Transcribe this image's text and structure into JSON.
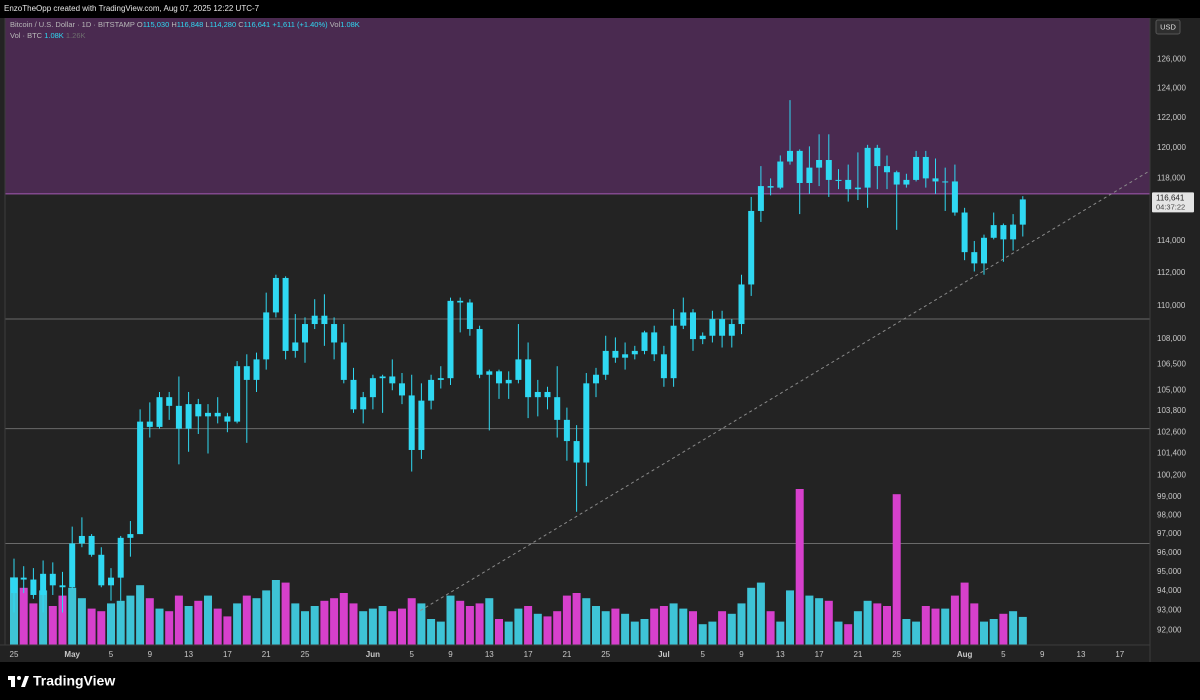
{
  "header": {
    "text": "EnzoTheOpp created with TradingView.com, Aug 07, 2025 12:22 UTC-7"
  },
  "footer": {
    "brand": "TradingView"
  },
  "legend": {
    "symbol": "Bitcoin / U.S. Dollar · 1D · BITSTAMP",
    "ohlc": [
      {
        "key": "O",
        "value": "115,030"
      },
      {
        "key": "H",
        "value": "116,848"
      },
      {
        "key": "L",
        "value": "114,280"
      },
      {
        "key": "C",
        "value": "116,641"
      }
    ],
    "change": "+1,611 (+1.40%)",
    "vol_key": "Vol",
    "vol_value": "1.08K",
    "vol_series": "Vol · BTC",
    "vol_now": "1.08K",
    "vol_ma": "1.26K"
  },
  "chart_data": {
    "type": "candlestick",
    "currency": "USD",
    "categories": [
      "25",
      null,
      null,
      null,
      null,
      null,
      "May",
      null,
      null,
      null,
      "5",
      null,
      null,
      null,
      "9",
      null,
      null,
      null,
      "13",
      null,
      null,
      null,
      "17",
      null,
      null,
      null,
      "21",
      null,
      null,
      null,
      "25",
      null,
      null,
      null,
      null,
      null,
      null,
      "Jun",
      null,
      null,
      null,
      "5",
      null,
      null,
      null,
      "9",
      null,
      null,
      null,
      "13",
      null,
      null,
      null,
      "17",
      null,
      null,
      null,
      "21",
      null,
      null,
      null,
      "25",
      null,
      null,
      null,
      null,
      null,
      "Jul",
      null,
      null,
      null,
      "5",
      null,
      null,
      null,
      "9",
      null,
      null,
      null,
      "13",
      null,
      null,
      null,
      "17",
      null,
      null,
      null,
      "21",
      null,
      null,
      null,
      "25",
      null,
      null,
      null,
      null,
      null,
      null,
      "Aug",
      null,
      null,
      null,
      "5",
      null,
      null,
      null,
      "9",
      null,
      null,
      null,
      "13",
      null,
      null,
      null,
      "17",
      null,
      null
    ],
    "open": [
      93900,
      94700,
      94600,
      93800,
      94900,
      94300,
      94200,
      96500,
      96900,
      95900,
      94300,
      94700,
      96800,
      97000,
      103200,
      102900,
      104600,
      104100,
      102800,
      104200,
      103500,
      103700,
      103500,
      103200,
      106400,
      105600,
      106800,
      109600,
      111700,
      107300,
      107800,
      108900,
      109400,
      108900,
      107800,
      105600,
      103900,
      104600,
      105700,
      105800,
      105400,
      104700,
      101600,
      104400,
      105600,
      105700,
      110300,
      110200,
      108600,
      105900,
      106100,
      105400,
      105600,
      106800,
      104600,
      104900,
      104600,
      103300,
      102100,
      100900,
      105400,
      105900,
      107300,
      106900,
      107100,
      107300,
      108400,
      107100,
      105700,
      108800,
      109600,
      108000,
      108200,
      109200,
      108200,
      108900,
      111300,
      115900,
      117500,
      117400,
      119100,
      119800,
      117700,
      118700,
      119200,
      117900,
      117900,
      117300,
      117400,
      120000,
      118800,
      118400,
      117600,
      117900,
      119400,
      118000,
      117800,
      117800,
      115800,
      113300,
      112600,
      114200,
      115000,
      114100,
      115030,
      null,
      null,
      null,
      null,
      null,
      null,
      null,
      null,
      null,
      null,
      null,
      null
    ],
    "high": [
      95700,
      95300,
      95200,
      95600,
      95500,
      95000,
      97400,
      97900,
      97000,
      96300,
      95200,
      96900,
      97700,
      103900,
      104300,
      104900,
      104900,
      105800,
      104900,
      104500,
      104200,
      104600,
      103700,
      106700,
      107100,
      107200,
      110800,
      111900,
      111800,
      109500,
      109300,
      110400,
      110700,
      109300,
      108900,
      106300,
      104900,
      105900,
      105900,
      106800,
      106000,
      105900,
      105400,
      105900,
      106400,
      110500,
      110500,
      110400,
      108800,
      106200,
      106200,
      106100,
      108900,
      107800,
      105600,
      105200,
      106400,
      104000,
      103000,
      106000,
      106300,
      108200,
      108100,
      107800,
      107600,
      108500,
      108800,
      107600,
      109800,
      110500,
      109800,
      108400,
      109700,
      109700,
      109200,
      111900,
      116800,
      118800,
      118000,
      119500,
      123200,
      119900,
      120100,
      120900,
      120900,
      118600,
      118900,
      119700,
      120200,
      120200,
      119500,
      118500,
      118300,
      119800,
      119800,
      119300,
      118700,
      118900,
      116100,
      114000,
      114400,
      115800,
      115100,
      115700,
      116848,
      null,
      null,
      null,
      null,
      null,
      null,
      null,
      null,
      null,
      null,
      null,
      null
    ],
    "low": [
      92900,
      93900,
      93600,
      92900,
      93800,
      92900,
      94100,
      96300,
      95800,
      94200,
      93500,
      93500,
      95800,
      97000,
      102300,
      102800,
      103300,
      100800,
      101500,
      102500,
      101400,
      103100,
      102600,
      103100,
      102000,
      104900,
      106200,
      109300,
      106800,
      106900,
      106600,
      108600,
      107600,
      106800,
      105400,
      103700,
      103100,
      103900,
      103700,
      105000,
      104200,
      100400,
      101100,
      103900,
      105100,
      105300,
      108400,
      108200,
      105700,
      102700,
      104500,
      104500,
      105400,
      103400,
      103500,
      103900,
      102300,
      101000,
      98200,
      99600,
      104600,
      105600,
      106600,
      106200,
      106800,
      107100,
      106700,
      105200,
      105200,
      108600,
      107300,
      107700,
      107800,
      107500,
      107500,
      108300,
      110600,
      115200,
      116900,
      117300,
      118900,
      115700,
      117000,
      117500,
      116800,
      117300,
      116500,
      116600,
      116100,
      117300,
      117300,
      114700,
      117400,
      117800,
      117400,
      117000,
      115900,
      115600,
      112800,
      112100,
      111900,
      114100,
      112700,
      113400,
      114280,
      null,
      null,
      null,
      null,
      null,
      null,
      null,
      null,
      null,
      null,
      null,
      null
    ],
    "close": [
      94700,
      94600,
      93800,
      94900,
      94300,
      94200,
      96500,
      96900,
      95900,
      94300,
      94700,
      96800,
      97000,
      103200,
      102900,
      104600,
      104100,
      102800,
      104200,
      103500,
      103700,
      103500,
      103200,
      106400,
      105600,
      106800,
      109600,
      111700,
      107300,
      107800,
      108900,
      109400,
      108900,
      107800,
      105600,
      103900,
      104600,
      105700,
      105800,
      105400,
      104700,
      101600,
      104400,
      105600,
      105700,
      110300,
      110200,
      108600,
      105900,
      106100,
      105400,
      105600,
      106800,
      104600,
      104900,
      104600,
      103300,
      102100,
      100900,
      105400,
      105900,
      107300,
      106900,
      107100,
      107300,
      108400,
      107100,
      105700,
      108800,
      109600,
      108000,
      108200,
      109200,
      108200,
      108900,
      111300,
      115900,
      117500,
      117400,
      119100,
      119800,
      117700,
      118700,
      119200,
      117900,
      117900,
      117300,
      117400,
      120000,
      118800,
      118400,
      117600,
      117900,
      119400,
      118000,
      117800,
      117800,
      115800,
      113300,
      112600,
      114200,
      115000,
      114100,
      115030,
      116641,
      null,
      null,
      null,
      null,
      null,
      null,
      null,
      null,
      null,
      null,
      null,
      null
    ],
    "volume": [
      2.6,
      2.2,
      1.6,
      2.1,
      1.5,
      1.9,
      2.2,
      1.8,
      1.4,
      1.3,
      1.6,
      1.7,
      1.9,
      2.3,
      1.8,
      1.4,
      1.3,
      1.9,
      1.5,
      1.7,
      1.9,
      1.4,
      1.1,
      1.6,
      1.9,
      1.8,
      2.1,
      2.5,
      2.4,
      1.6,
      1.3,
      1.5,
      1.7,
      1.8,
      2.0,
      1.6,
      1.3,
      1.4,
      1.5,
      1.3,
      1.4,
      1.8,
      1.6,
      1.0,
      0.9,
      1.9,
      1.7,
      1.5,
      1.6,
      1.8,
      1.0,
      0.9,
      1.4,
      1.5,
      1.2,
      1.1,
      1.3,
      1.9,
      2.0,
      1.8,
      1.5,
      1.3,
      1.4,
      1.2,
      0.9,
      1.0,
      1.4,
      1.5,
      1.6,
      1.4,
      1.3,
      0.8,
      0.9,
      1.3,
      1.2,
      1.6,
      2.2,
      2.4,
      1.3,
      0.9,
      2.1,
      6.0,
      1.9,
      1.8,
      1.7,
      0.9,
      0.8,
      1.3,
      1.7,
      1.6,
      1.5,
      5.8,
      1.0,
      0.9,
      1.5,
      1.4,
      1.4,
      1.9,
      2.4,
      1.6,
      0.9,
      1.0,
      1.2,
      1.3,
      1.08,
      null,
      null,
      null,
      null,
      null,
      null,
      null,
      null,
      null,
      null,
      null,
      null
    ],
    "candle_color": "#2fd8f2",
    "volume_up_color": "#3ec3d6",
    "volume_down_color": "#d640cc",
    "log_scale": true,
    "ylim": [
      91250,
      128900
    ],
    "yticks": [
      {
        "value": 126000,
        "label": "126,000"
      },
      {
        "value": 124000,
        "label": "124,000"
      },
      {
        "value": 122000,
        "label": "122,000"
      },
      {
        "value": 120000,
        "label": "120,000"
      },
      {
        "value": 118000,
        "label": "118,000"
      },
      {
        "value": 114000,
        "label": "114,000"
      },
      {
        "value": 112000,
        "label": "112,000"
      },
      {
        "value": 110000,
        "label": "110,000"
      },
      {
        "value": 108000,
        "label": "108,000"
      },
      {
        "value": 106500,
        "label": "106,500"
      },
      {
        "value": 105000,
        "label": "105,000"
      },
      {
        "value": 103800,
        "label": "103,800"
      },
      {
        "value": 102600,
        "label": "102,600"
      },
      {
        "value": 101400,
        "label": "101,400"
      },
      {
        "value": 100200,
        "label": "100,200"
      },
      {
        "value": 99000,
        "label": "99,000"
      },
      {
        "value": 98000,
        "label": "98,000"
      },
      {
        "value": 97000,
        "label": "97,000"
      },
      {
        "value": 96000,
        "label": "96,000"
      },
      {
        "value": 95000,
        "label": "95,000"
      },
      {
        "value": 94000,
        "label": "94,000"
      },
      {
        "value": 93000,
        "label": "93,000"
      },
      {
        "value": 92000,
        "label": "92,000"
      }
    ],
    "zone": {
      "from": 117000,
      "color": "#4a2a50"
    },
    "hlines": [
      {
        "value": 117000,
        "color": "#a55bb3"
      },
      {
        "value": 109200,
        "color": "#6a6a6a"
      },
      {
        "value": 102800,
        "color": "#6a6a6a"
      },
      {
        "value": 96500,
        "color": "#6a6a6a"
      }
    ],
    "trendline": {
      "x": [
        41.9,
        117.1
      ],
      "y": [
        93000,
        118500
      ],
      "color": "#8a8a8a"
    },
    "last_price_label": "116,641",
    "countdown": "04:37:22"
  }
}
